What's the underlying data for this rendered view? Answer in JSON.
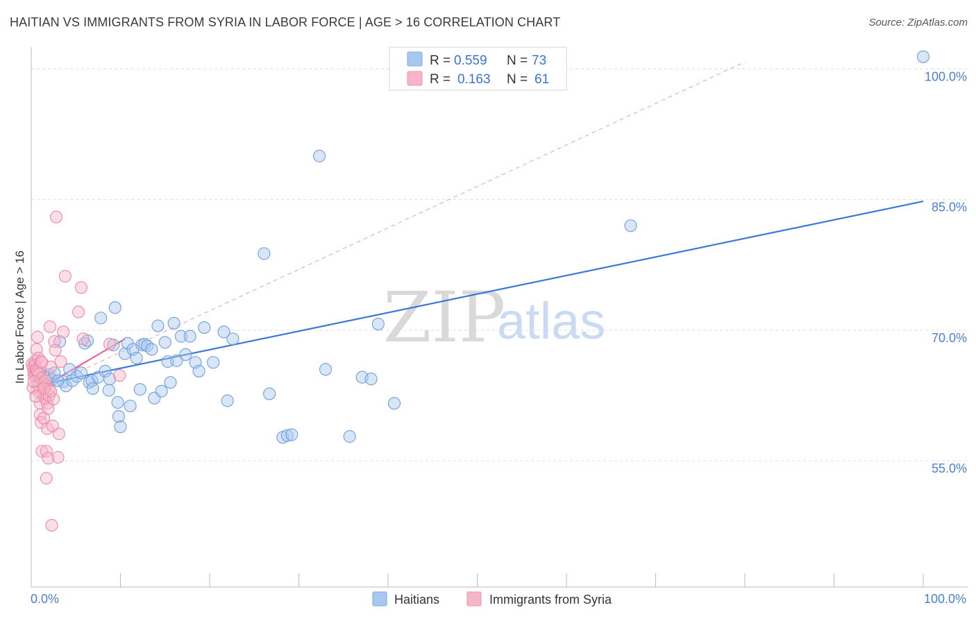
{
  "header": {
    "title": "HAITIAN VS IMMIGRANTS FROM SYRIA IN LABOR FORCE | AGE > 16 CORRELATION CHART",
    "source": "Source: ZipAtlas.com"
  },
  "watermark": {
    "zip": "ZIP",
    "atlas": "atlas"
  },
  "legend": {
    "items": [
      {
        "r_label": "R =",
        "r_value": "0.559",
        "n_label": "N =",
        "n_value": "73",
        "color": "#a8c8f0",
        "stroke": "#7aa8e0"
      },
      {
        "r_label": "R =",
        "r_value": "0.163",
        "n_label": "N =",
        "n_value": "61",
        "color": "#f7b6c8",
        "stroke": "#ee8fab"
      }
    ]
  },
  "bottom_legend": [
    "Haitians",
    "Immigrants from Syria"
  ],
  "chart_data": {
    "type": "scatter",
    "title": "HAITIAN VS IMMIGRANTS FROM SYRIA IN LABOR FORCE | AGE > 16 CORRELATION CHART",
    "xlabel": "",
    "ylabel": "In Labor Force | Age > 16",
    "xlim": [
      0,
      100
    ],
    "ylim": [
      40.5,
      102.5
    ],
    "x_ticks_labels": [
      "0.0%",
      "100.0%"
    ],
    "y_ticks": [
      55,
      70,
      85,
      100
    ],
    "y_ticks_labels": [
      "55.0%",
      "70.0%",
      "85.0%",
      "100.0%"
    ],
    "grid": true,
    "legend_position": "top-center",
    "series": [
      {
        "name": "Haitians",
        "color": "#a8c8f0",
        "stroke": "#6f9fd9",
        "trend": {
          "x": [
            0,
            100
          ],
          "y": [
            63.5,
            84.8
          ],
          "color": "#3a78d8"
        },
        "points": [
          [
            0.6,
            65.0
          ],
          [
            0.8,
            64.8
          ],
          [
            1.0,
            65.2
          ],
          [
            1.5,
            64.6
          ],
          [
            1.8,
            63.8
          ],
          [
            2.0,
            64.9
          ],
          [
            2.3,
            64.3
          ],
          [
            2.6,
            65.1
          ],
          [
            3.2,
            68.7
          ],
          [
            3.6,
            64.1
          ],
          [
            3.9,
            63.6
          ],
          [
            4.3,
            65.5
          ],
          [
            4.6,
            64.2
          ],
          [
            5.1,
            64.7
          ],
          [
            5.6,
            65.1
          ],
          [
            6.0,
            68.5
          ],
          [
            6.3,
            68.8
          ],
          [
            6.5,
            64.0
          ],
          [
            6.8,
            64.2
          ],
          [
            6.9,
            63.3
          ],
          [
            7.5,
            64.6
          ],
          [
            7.8,
            71.4
          ],
          [
            8.3,
            65.3
          ],
          [
            8.7,
            63.1
          ],
          [
            8.8,
            64.4
          ],
          [
            9.2,
            68.3
          ],
          [
            9.4,
            72.6
          ],
          [
            9.7,
            61.7
          ],
          [
            9.8,
            60.1
          ],
          [
            10.0,
            58.9
          ],
          [
            10.5,
            67.3
          ],
          [
            10.8,
            68.5
          ],
          [
            11.1,
            61.3
          ],
          [
            11.4,
            67.8
          ],
          [
            11.8,
            66.8
          ],
          [
            12.2,
            63.2
          ],
          [
            12.4,
            68.3
          ],
          [
            12.7,
            68.4
          ],
          [
            13.0,
            68.2
          ],
          [
            13.5,
            67.8
          ],
          [
            13.8,
            62.2
          ],
          [
            14.2,
            70.5
          ],
          [
            14.6,
            63.0
          ],
          [
            15.0,
            68.6
          ],
          [
            15.3,
            66.4
          ],
          [
            15.6,
            64.0
          ],
          [
            16.0,
            70.8
          ],
          [
            16.3,
            66.5
          ],
          [
            16.8,
            69.3
          ],
          [
            17.3,
            67.2
          ],
          [
            17.8,
            69.3
          ],
          [
            18.4,
            66.3
          ],
          [
            18.8,
            65.3
          ],
          [
            19.4,
            70.3
          ],
          [
            20.4,
            66.3
          ],
          [
            21.6,
            69.8
          ],
          [
            22.0,
            61.9
          ],
          [
            22.6,
            69.0
          ],
          [
            26.1,
            78.8
          ],
          [
            26.7,
            62.7
          ],
          [
            28.2,
            57.7
          ],
          [
            28.7,
            57.9
          ],
          [
            29.2,
            58.0
          ],
          [
            32.3,
            90.0
          ],
          [
            33.0,
            65.5
          ],
          [
            35.7,
            57.8
          ],
          [
            37.1,
            64.6
          ],
          [
            38.1,
            64.4
          ],
          [
            38.9,
            70.7
          ],
          [
            40.7,
            61.6
          ],
          [
            67.2,
            82.0
          ],
          [
            100.0,
            101.4
          ],
          [
            3.0,
            64.2
          ]
        ]
      },
      {
        "name": "Immigrants from Syria",
        "color": "#f7b6c8",
        "stroke": "#ec8aa8",
        "trend": {
          "x": [
            0,
            10.5
          ],
          "y": [
            62.7,
            69.0
          ],
          "color": "#e8658e"
        },
        "dashed_trend": {
          "x": [
            0,
            80
          ],
          "y": [
            62.7,
            100.8
          ],
          "color": "#e8a0b4"
        },
        "points": [
          [
            0.1,
            66.1
          ],
          [
            0.2,
            65.7
          ],
          [
            0.3,
            65.2
          ],
          [
            0.3,
            64.8
          ],
          [
            0.4,
            66.4
          ],
          [
            0.4,
            66.0
          ],
          [
            0.5,
            65.5
          ],
          [
            0.5,
            64.9
          ],
          [
            0.6,
            67.8
          ],
          [
            0.6,
            65.4
          ],
          [
            0.7,
            69.2
          ],
          [
            0.7,
            65.2
          ],
          [
            0.8,
            63.6
          ],
          [
            0.8,
            66.8
          ],
          [
            0.9,
            65.0
          ],
          [
            0.9,
            62.9
          ],
          [
            1.0,
            61.6
          ],
          [
            1.0,
            60.3
          ],
          [
            1.1,
            66.4
          ],
          [
            1.1,
            59.4
          ],
          [
            1.2,
            64.5
          ],
          [
            1.2,
            56.1
          ],
          [
            1.3,
            62.7
          ],
          [
            1.3,
            63.9
          ],
          [
            1.4,
            59.9
          ],
          [
            1.5,
            62.3
          ],
          [
            1.5,
            63.5
          ],
          [
            1.6,
            62.1
          ],
          [
            1.6,
            64.2
          ],
          [
            1.7,
            56.1
          ],
          [
            1.7,
            53.0
          ],
          [
            1.8,
            58.7
          ],
          [
            1.8,
            61.6
          ],
          [
            1.9,
            55.3
          ],
          [
            2.0,
            63.2
          ],
          [
            2.0,
            62.5
          ],
          [
            2.1,
            70.4
          ],
          [
            2.2,
            65.8
          ],
          [
            2.3,
            47.6
          ],
          [
            2.4,
            59.0
          ],
          [
            2.5,
            62.1
          ],
          [
            2.6,
            68.7
          ],
          [
            2.8,
            83.0
          ],
          [
            3.0,
            55.4
          ],
          [
            3.1,
            58.1
          ],
          [
            3.3,
            66.4
          ],
          [
            3.6,
            69.8
          ],
          [
            3.8,
            76.2
          ],
          [
            5.3,
            72.1
          ],
          [
            5.6,
            74.9
          ],
          [
            5.8,
            69.0
          ],
          [
            8.8,
            68.4
          ],
          [
            9.9,
            64.8
          ],
          [
            0.2,
            63.4
          ],
          [
            0.3,
            64.1
          ],
          [
            1.2,
            66.3
          ],
          [
            1.4,
            63.3
          ],
          [
            2.7,
            67.7
          ],
          [
            1.9,
            61.0
          ],
          [
            2.2,
            63.0
          ],
          [
            0.5,
            62.4
          ]
        ]
      }
    ]
  }
}
